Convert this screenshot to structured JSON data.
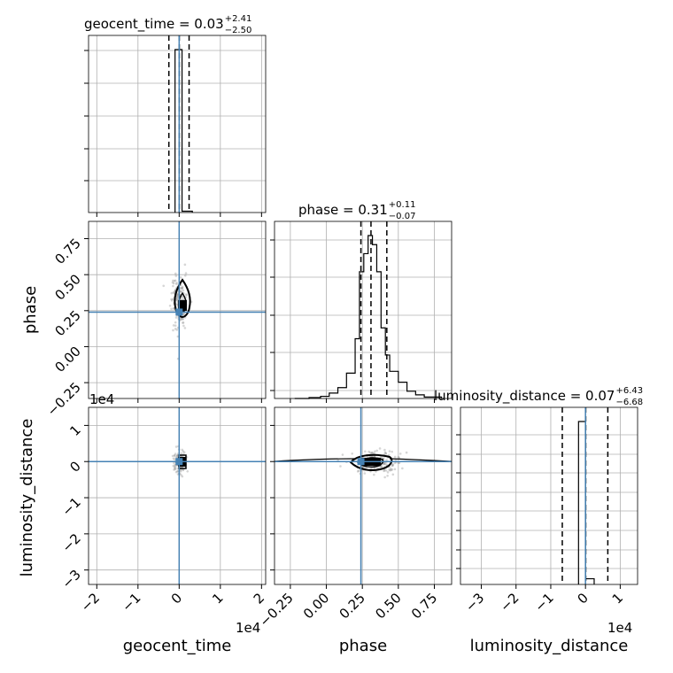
{
  "chart_data": [
    {
      "type": "histogram",
      "panel": "geocent_time-marginal",
      "title_name": "geocent_time = 0.03",
      "title_plus": "+2.41",
      "title_minus": "−2.50",
      "xlim": [
        -22000.0,
        21000.0
      ],
      "bins": [
        {
          "x0": -1000,
          "x1": 700,
          "h": 1.0
        },
        {
          "x0": 700,
          "x1": 3200,
          "h": 0.008
        }
      ],
      "quantiles": [
        -2500,
        30,
        2410
      ],
      "median": 30,
      "truth": 0
    },
    {
      "type": "histogram",
      "panel": "phase-marginal",
      "title_name": "phase = 0.31",
      "title_plus": "+0.11",
      "title_minus": "−0.07",
      "xlabel": "phase",
      "xlim": [
        -0.36,
        0.87
      ],
      "xticks": [
        "−0.25",
        "0.00",
        "0.25",
        "0.50",
        "0.75"
      ],
      "xtick_values": [
        -0.25,
        0.0,
        0.25,
        0.5,
        0.75
      ],
      "bins": [
        {
          "x0": -0.22,
          "x1": -0.12,
          "h": 0.0
        },
        {
          "x0": -0.12,
          "x1": -0.04,
          "h": 0.005
        },
        {
          "x0": -0.04,
          "x1": 0.02,
          "h": 0.012
        },
        {
          "x0": 0.02,
          "x1": 0.08,
          "h": 0.03
        },
        {
          "x0": 0.08,
          "x1": 0.14,
          "h": 0.06
        },
        {
          "x0": 0.14,
          "x1": 0.2,
          "h": 0.14
        },
        {
          "x0": 0.2,
          "x1": 0.23,
          "h": 0.33
        },
        {
          "x0": 0.23,
          "x1": 0.26,
          "h": 0.7
        },
        {
          "x0": 0.26,
          "x1": 0.29,
          "h": 0.8
        },
        {
          "x0": 0.29,
          "x1": 0.32,
          "h": 0.9
        },
        {
          "x0": 0.32,
          "x1": 0.35,
          "h": 0.85
        },
        {
          "x0": 0.35,
          "x1": 0.38,
          "h": 0.7
        },
        {
          "x0": 0.38,
          "x1": 0.41,
          "h": 0.39
        },
        {
          "x0": 0.41,
          "x1": 0.44,
          "h": 0.24
        },
        {
          "x0": 0.44,
          "x1": 0.5,
          "h": 0.15
        },
        {
          "x0": 0.5,
          "x1": 0.56,
          "h": 0.09
        },
        {
          "x0": 0.56,
          "x1": 0.62,
          "h": 0.04
        },
        {
          "x0": 0.62,
          "x1": 0.68,
          "h": 0.02
        },
        {
          "x0": 0.68,
          "x1": 0.8,
          "h": 0.008
        }
      ],
      "quantiles": [
        0.24,
        0.31,
        0.42
      ],
      "truth": 0.24
    },
    {
      "type": "histogram",
      "panel": "luminosity_distance-marginal",
      "title_name": "luminosity_distance = 0.07",
      "title_plus": "+6.43",
      "title_minus": "−6.68",
      "xlabel": "luminosity_distance",
      "offset_label": "1e4",
      "xlim": [
        -36000.0,
        15000.0
      ],
      "xticks": [
        "−3",
        "−2",
        "−1",
        "0",
        "1"
      ],
      "xtick_values": [
        -30000.0,
        -20000.0,
        -10000.0,
        0,
        10000.0
      ],
      "bins": [
        {
          "x0": -2000,
          "x1": 0,
          "h": 1.0
        },
        {
          "x0": 0,
          "x1": 2500,
          "h": 0.035
        }
      ],
      "quantiles": [
        -6680,
        70,
        6430
      ],
      "truth": 0
    },
    {
      "type": "scatter",
      "panel": "phase-vs-geocent_time",
      "xlabel": "geocent_time",
      "ylabel": "phase",
      "offset_label": "1e4",
      "xlim": [
        -22000.0,
        21000.0
      ],
      "ylim": [
        -0.36,
        0.87
      ],
      "xticks": [
        "−2",
        "−1",
        "0",
        "1",
        "2"
      ],
      "xtick_values": [
        -20000.0,
        -10000.0,
        0,
        10000.0,
        20000.0
      ],
      "yticks": [
        "−0.25",
        "0.00",
        "0.25",
        "0.50",
        "0.75"
      ],
      "ytick_values": [
        -0.25,
        0.0,
        0.25,
        0.5,
        0.75
      ],
      "truth": [
        0,
        0.24
      ]
    },
    {
      "type": "scatter",
      "panel": "luminosity_distance-vs-geocent_time",
      "ylabel": "luminosity_distance",
      "offset_label": "1e4",
      "xlim": [
        -22000.0,
        21000.0
      ],
      "ylim": [
        -34000.0,
        15000.0
      ],
      "xticks": [
        "−2",
        "−1",
        "0",
        "1",
        "2"
      ],
      "xtick_values": [
        -20000.0,
        -10000.0,
        0,
        10000.0,
        20000.0
      ],
      "yticks": [
        "1",
        "0",
        "−1",
        "−2",
        "−3"
      ],
      "ytick_values": [
        10000.0,
        0,
        -10000.0,
        -20000.0,
        -30000.0
      ],
      "truth": [
        0,
        0
      ]
    },
    {
      "type": "scatter",
      "panel": "luminosity_distance-vs-phase",
      "xlim": [
        -0.36,
        0.87
      ],
      "ylim": [
        -34000.0,
        15000.0
      ],
      "xticks": [
        "−0.25",
        "0.00",
        "0.25",
        "0.50",
        "0.75"
      ],
      "xtick_values": [
        -0.25,
        0.0,
        0.25,
        0.5,
        0.75
      ],
      "truth": [
        0.24,
        0
      ]
    }
  ],
  "colors": {
    "truth": "#4682b4",
    "hist": "#000000",
    "grid": "#b0b0b0",
    "scatter": "#8a8a8a"
  }
}
